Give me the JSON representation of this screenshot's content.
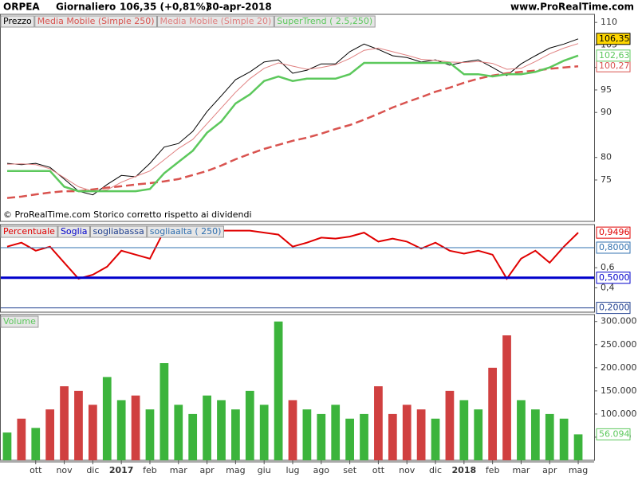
{
  "header": {
    "symbol": "ORPEA",
    "period": "Giornaliero",
    "quote": "106,35 (+0,81%)",
    "date": "30-apr-2018",
    "site": "www.ProRealTime.com"
  },
  "chart_data": [
    {
      "type": "line",
      "note": "© ProRealTime.com  Storico corretto rispetto ai dividendi",
      "ylim": [
        65.8,
        111.8
      ],
      "yticks": [
        75,
        80,
        90,
        95,
        100,
        105,
        110
      ],
      "series": [
        {
          "name": "Prezzo",
          "color": "#000000",
          "width": 1,
          "label_bg": "#ffd700",
          "last_value_label": "106,35",
          "values": [
            78.7,
            78.4,
            78.7,
            77.8,
            75.2,
            72.5,
            71.7,
            74,
            76,
            75.7,
            78.7,
            82.3,
            83.1,
            85.8,
            90.2,
            93.7,
            97.3,
            99,
            101.2,
            101.7,
            98.7,
            99.4,
            100.8,
            100.8,
            103.5,
            105.2,
            104,
            102.6,
            102.2,
            101.2,
            101.7,
            100.5,
            101.2,
            101.7,
            100,
            98.2,
            100.8,
            102.6,
            104.3,
            105.2,
            106.35
          ]
        },
        {
          "name": "Media Mobile (Simple 250)",
          "color": "#d9534f",
          "width": 2.5,
          "dash": true,
          "last_value_label": "100,27",
          "values": [
            71,
            71.3,
            71.8,
            72.2,
            72.5,
            72.5,
            72.9,
            73.3,
            73.6,
            74,
            74.3,
            74.7,
            75.2,
            76.1,
            77,
            78.2,
            79.6,
            80.8,
            81.9,
            82.8,
            83.7,
            84.4,
            85.3,
            86.3,
            87.2,
            88.4,
            89.7,
            91.1,
            92.3,
            93.4,
            94.6,
            95.5,
            96.6,
            97.5,
            98.2,
            98.7,
            99,
            99.3,
            99.7,
            100,
            100.27
          ]
        },
        {
          "name": "Media Mobile (Simple 20)",
          "color": "#e08080",
          "width": 1,
          "values": [
            78.5,
            78.6,
            78.4,
            77.5,
            75.5,
            73.5,
            72.5,
            72.8,
            74.5,
            75.8,
            77,
            79.5,
            82,
            84,
            87.5,
            91,
            94.5,
            97.5,
            99.8,
            101,
            100.3,
            99.6,
            100,
            100.6,
            102,
            103.8,
            104.3,
            103.5,
            102.7,
            101.8,
            101.6,
            101.2,
            101.1,
            101.3,
            100.9,
            99.6,
            99.8,
            101.3,
            103,
            104.3,
            105.3
          ]
        },
        {
          "name": "SuperTrend ( 2.5,250)",
          "color": "#5cc85c",
          "width": 2.5,
          "last_value_label": "102,63",
          "values": [
            77,
            77,
            77,
            77,
            73.5,
            72.5,
            72.5,
            72.5,
            72.5,
            72.5,
            73,
            76.5,
            79,
            81.5,
            85.5,
            88,
            92,
            94,
            97,
            98,
            97,
            97.5,
            97.5,
            97.5,
            98.5,
            101,
            101,
            101,
            101,
            101,
            101,
            101,
            98.5,
            98.5,
            98,
            98.5,
            98.5,
            99,
            100,
            101.5,
            102.63
          ]
        }
      ]
    },
    {
      "type": "line",
      "ylim": [
        0.157,
        1.03
      ],
      "yticks": [
        {
          "value": 0.4,
          "label": "0,4"
        },
        {
          "value": 0.6,
          "label": "0,6"
        }
      ],
      "series": [
        {
          "name": "Percentuale",
          "color": "#e00000",
          "width": 2,
          "last_value_label": "0,9496",
          "values": [
            0.81,
            0.85,
            0.77,
            0.81,
            0.65,
            0.49,
            0.53,
            0.61,
            0.77,
            0.73,
            0.69,
            0.97,
            0.98,
            0.99,
            0.98,
            0.97,
            0.97,
            0.97,
            0.95,
            0.93,
            0.81,
            0.85,
            0.9,
            0.89,
            0.91,
            0.95,
            0.86,
            0.89,
            0.86,
            0.79,
            0.85,
            0.77,
            0.74,
            0.77,
            0.73,
            0.49,
            0.69,
            0.77,
            0.65,
            0.81,
            0.9496
          ]
        },
        {
          "name": "Soglia",
          "color": "#0000cc",
          "width": 3,
          "level": true,
          "values": [
            0.5
          ],
          "value_labels": [
            "0,5000"
          ]
        },
        {
          "name": "sogliabassa",
          "color": "#1f3f8f",
          "width": 1,
          "level": true,
          "values": [
            0.2
          ],
          "value_labels": [
            "0,2000"
          ]
        },
        {
          "name": "sogliaalta ( 250)",
          "color": "#3070b0",
          "width": 1,
          "level": true,
          "values": [
            0.8
          ],
          "value_labels": [
            "0,8000"
          ]
        }
      ]
    },
    {
      "type": "bar",
      "ylim": [
        0,
        315000
      ],
      "yticks": [
        {
          "value": 50000,
          "label": "50.000"
        },
        {
          "value": 100000,
          "label": "100.000"
        },
        {
          "value": 150000,
          "label": "150.000"
        },
        {
          "value": 200000,
          "label": "200.000"
        },
        {
          "value": 250000,
          "label": "250.000"
        },
        {
          "value": 300000,
          "label": "300.000"
        }
      ],
      "up_color": "#3cb43c",
      "down_color": "#d04040",
      "categories": [
        null,
        null,
        "ott",
        null,
        "nov",
        null,
        "dic",
        null,
        "2017",
        null,
        "feb",
        null,
        "mar",
        null,
        "apr",
        null,
        "mag",
        null,
        "giu",
        null,
        "lug",
        null,
        "ago",
        null,
        "set",
        null,
        "ott",
        null,
        "nov",
        null,
        "dic",
        null,
        "2018",
        null,
        "feb",
        null,
        "mar",
        null,
        "apr",
        null,
        "mag"
      ],
      "series": [
        {
          "name": "Volume",
          "color": "#5cc85c",
          "last_value_label": "56.094",
          "values": [
            60000,
            90000,
            70000,
            110000,
            160000,
            150000,
            120000,
            180000,
            130000,
            140000,
            110000,
            210000,
            120000,
            100000,
            140000,
            130000,
            110000,
            150000,
            120000,
            300000,
            130000,
            110000,
            100000,
            120000,
            90000,
            100000,
            160000,
            100000,
            120000,
            110000,
            90000,
            150000,
            130000,
            110000,
            200000,
            270000,
            130000,
            110000,
            100000,
            90000,
            56094
          ]
        }
      ]
    }
  ]
}
